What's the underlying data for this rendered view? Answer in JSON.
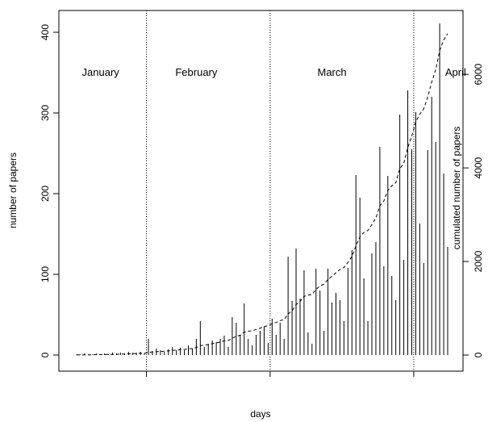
{
  "chart_data": {
    "type": "bar",
    "xlabel": "days",
    "ylabel": "number of papers",
    "y2label": "cumulated number of papers",
    "ylim": [
      0,
      415
    ],
    "y2lim": [
      0,
      7400
    ],
    "yticks": [
      0,
      100,
      200,
      300,
      400
    ],
    "y2ticks": [
      0,
      2000,
      4000,
      6000
    ],
    "month_labels": [
      "January",
      "February",
      "March",
      "April"
    ],
    "month_boundaries": [
      17.5,
      48.5,
      84.5
    ],
    "grid": false,
    "series": [
      {
        "type": "bar",
        "values": [
          1,
          1,
          2,
          1,
          1,
          2,
          1,
          2,
          1,
          3,
          2,
          3,
          2,
          4,
          3,
          3,
          4,
          2,
          20,
          5,
          8,
          6,
          4,
          7,
          10,
          6,
          9,
          6,
          12,
          8,
          20,
          42,
          10,
          14,
          18,
          16,
          20,
          24,
          10,
          47,
          40,
          25,
          64,
          20,
          12,
          25,
          30,
          35,
          15,
          45,
          25,
          40,
          20,
          122,
          67,
          132,
          70,
          105,
          28,
          14,
          107,
          80,
          30,
          107,
          65,
          77,
          68,
          42,
          108,
          130,
          223,
          195,
          95,
          42,
          126,
          140,
          258,
          110,
          222,
          98,
          68,
          298,
          118,
          328,
          255,
          301,
          163,
          114,
          254,
          320,
          264,
          411,
          225,
          134
        ]
      },
      {
        "type": "line",
        "style": "dashed",
        "values": [
          1,
          2,
          4,
          5,
          6,
          8,
          9,
          11,
          12,
          15,
          17,
          20,
          22,
          26,
          29,
          32,
          36,
          38,
          58,
          63,
          71,
          77,
          81,
          88,
          98,
          104,
          113,
          119,
          131,
          139,
          159,
          201,
          211,
          225,
          243,
          259,
          279,
          303,
          313,
          360,
          400,
          425,
          489,
          509,
          521,
          546,
          576,
          611,
          626,
          671,
          696,
          736,
          756,
          878,
          945,
          1077,
          1147,
          1252,
          1280,
          1294,
          1401,
          1481,
          1511,
          1618,
          1683,
          1760,
          1828,
          1870,
          1978,
          2108,
          2331,
          2526,
          2621,
          2663,
          2789,
          2929,
          3187,
          3297,
          3519,
          3617,
          3685,
          3983,
          4101,
          4429,
          4684,
          4985,
          5148,
          5262,
          5516,
          5836,
          6100,
          6511,
          6736,
          6870
        ]
      }
    ]
  }
}
